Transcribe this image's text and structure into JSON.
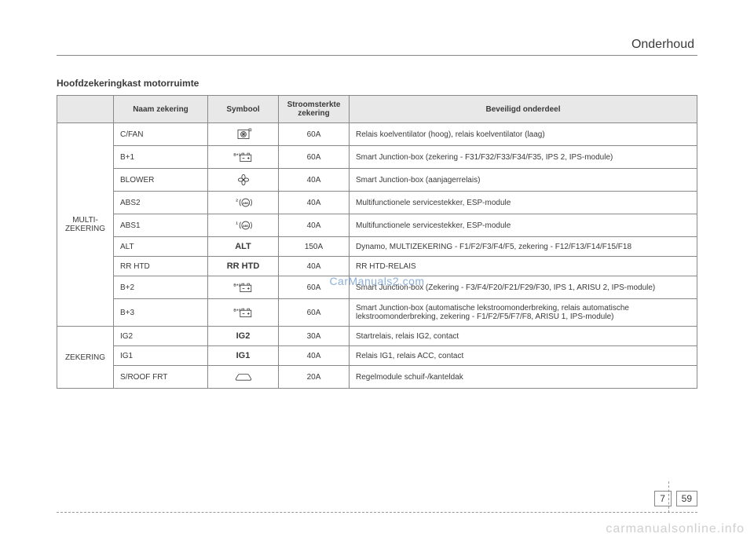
{
  "header": {
    "section": "Onderhoud"
  },
  "title": "Hoofdzekeringkast motorruimte",
  "watermark": "CarManuals2.com",
  "site_watermark": "carmanualsonline.info",
  "page": {
    "chapter": "7",
    "num": "59"
  },
  "columns": {
    "name": "Naam zekering",
    "symbol": "Symbool",
    "amp": "Stroomsterkte zekering",
    "desc": "Beveiligd onderdeel"
  },
  "groups": [
    {
      "label": "MULTI-\nZEKERING",
      "rows": [
        {
          "name": "C/FAN",
          "symbol_kind": "fanbox",
          "symbol_text": "",
          "amp": "60A",
          "desc": "Relais koelventilator (hoog), relais koelventilator (laag)"
        },
        {
          "name": "B+1",
          "symbol_kind": "battery",
          "symbol_text": "B+1",
          "amp": "60A",
          "desc": "Smart Junction-box (zekering - F31/F32/F33/F34/F35, IPS 2, IPS-module)"
        },
        {
          "name": "BLOWER",
          "symbol_kind": "blower",
          "symbol_text": "",
          "amp": "40A",
          "desc": "Smart Junction-box (aanjagerrelais)"
        },
        {
          "name": "ABS2",
          "symbol_kind": "abs",
          "symbol_text": "2",
          "amp": "40A",
          "desc": "Multifunctionele servicestekker, ESP-module"
        },
        {
          "name": "ABS1",
          "symbol_kind": "abs",
          "symbol_text": "1",
          "amp": "40A",
          "desc": "Multifunctionele servicestekker, ESP-module"
        },
        {
          "name": "ALT",
          "symbol_kind": "text",
          "symbol_text": "ALT",
          "amp": "150A",
          "desc": "Dynamo, MULTIZEKERING - F1/F2/F3/F4/F5, zekering - F12/F13/F14/F15/F18"
        },
        {
          "name": "RR HTD",
          "symbol_kind": "text",
          "symbol_text": "RR HTD",
          "amp": "40A",
          "desc": "RR HTD-RELAIS"
        },
        {
          "name": "B+2",
          "symbol_kind": "battery",
          "symbol_text": "B+2",
          "amp": "60A",
          "desc": "Smart Junction-box (Zekering - F3/F4/F20/F21/F29/F30, IPS 1, ARISU 2, IPS-module)"
        },
        {
          "name": "B+3",
          "symbol_kind": "battery",
          "symbol_text": "B+3",
          "amp": "60A",
          "desc": "Smart Junction-box (automatische lekstroomonderbreking, relais automatische lekstroomonderbreking, zekering - F1/F2/F5/F7/F8, ARISU 1, IPS-module)"
        }
      ]
    },
    {
      "label": "ZEKERING",
      "rows": [
        {
          "name": "IG2",
          "symbol_kind": "text",
          "symbol_text": "IG2",
          "amp": "30A",
          "desc": "Startrelais, relais IG2, contact"
        },
        {
          "name": "IG1",
          "symbol_kind": "text",
          "symbol_text": "IG1",
          "amp": "40A",
          "desc": "Relais IG1, relais ACC, contact"
        },
        {
          "name": "S/ROOF FRT",
          "symbol_kind": "car",
          "symbol_text": "",
          "amp": "20A",
          "desc": "Regelmodule schuif-/kanteldak"
        }
      ]
    }
  ],
  "style": {
    "colors": {
      "text": "#3a3a3a",
      "border": "#888888",
      "header_bg": "#e8e8e8",
      "watermark": "#7aa3d4",
      "site_watermark": "#cfcfcf",
      "background": "#ffffff"
    },
    "fonts": {
      "body_pt": 10,
      "title_pt": 12,
      "section_pt": 16
    }
  }
}
